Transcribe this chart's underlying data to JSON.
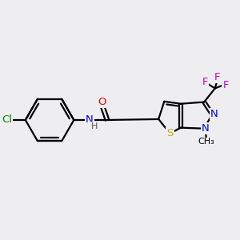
{
  "bg_color": "#eeeef0",
  "bond_color": "#000000",
  "bond_width": 1.6,
  "atom_colors": {
    "O": "#ff0000",
    "N": "#0000ff",
    "S": "#ccaa00",
    "Cl": "#008800",
    "F": "#cc00cc",
    "C": "#000000",
    "H": "#555555"
  },
  "font_size": 9.5,
  "fig_size": [
    3.0,
    3.0
  ],
  "dpi": 100
}
